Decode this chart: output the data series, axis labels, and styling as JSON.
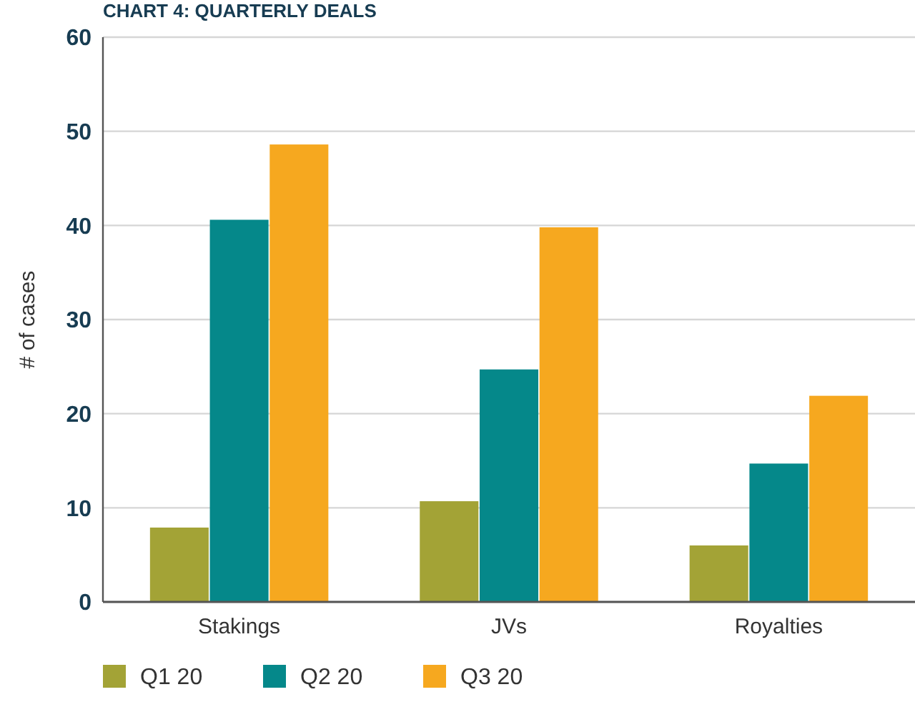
{
  "chart_data": {
    "type": "bar",
    "title": "CHART 4: QUARTERLY DEALS",
    "ylabel": "# of cases",
    "categories": [
      "Stakings",
      "JVs",
      "Royalties"
    ],
    "series": [
      {
        "name": "Q1 20",
        "color": "#a3a336",
        "values": [
          7.9,
          10.7,
          6.0
        ]
      },
      {
        "name": "Q2 20",
        "color": "#05888a",
        "values": [
          40.6,
          24.7,
          14.7
        ]
      },
      {
        "name": "Q3 20",
        "color": "#f6a81f",
        "values": [
          48.6,
          39.8,
          21.9
        ]
      }
    ],
    "ylim": [
      0,
      60
    ],
    "yticks": [
      0,
      10,
      20,
      30,
      40,
      50,
      60
    ],
    "grid": "y",
    "legend": "bottom"
  }
}
